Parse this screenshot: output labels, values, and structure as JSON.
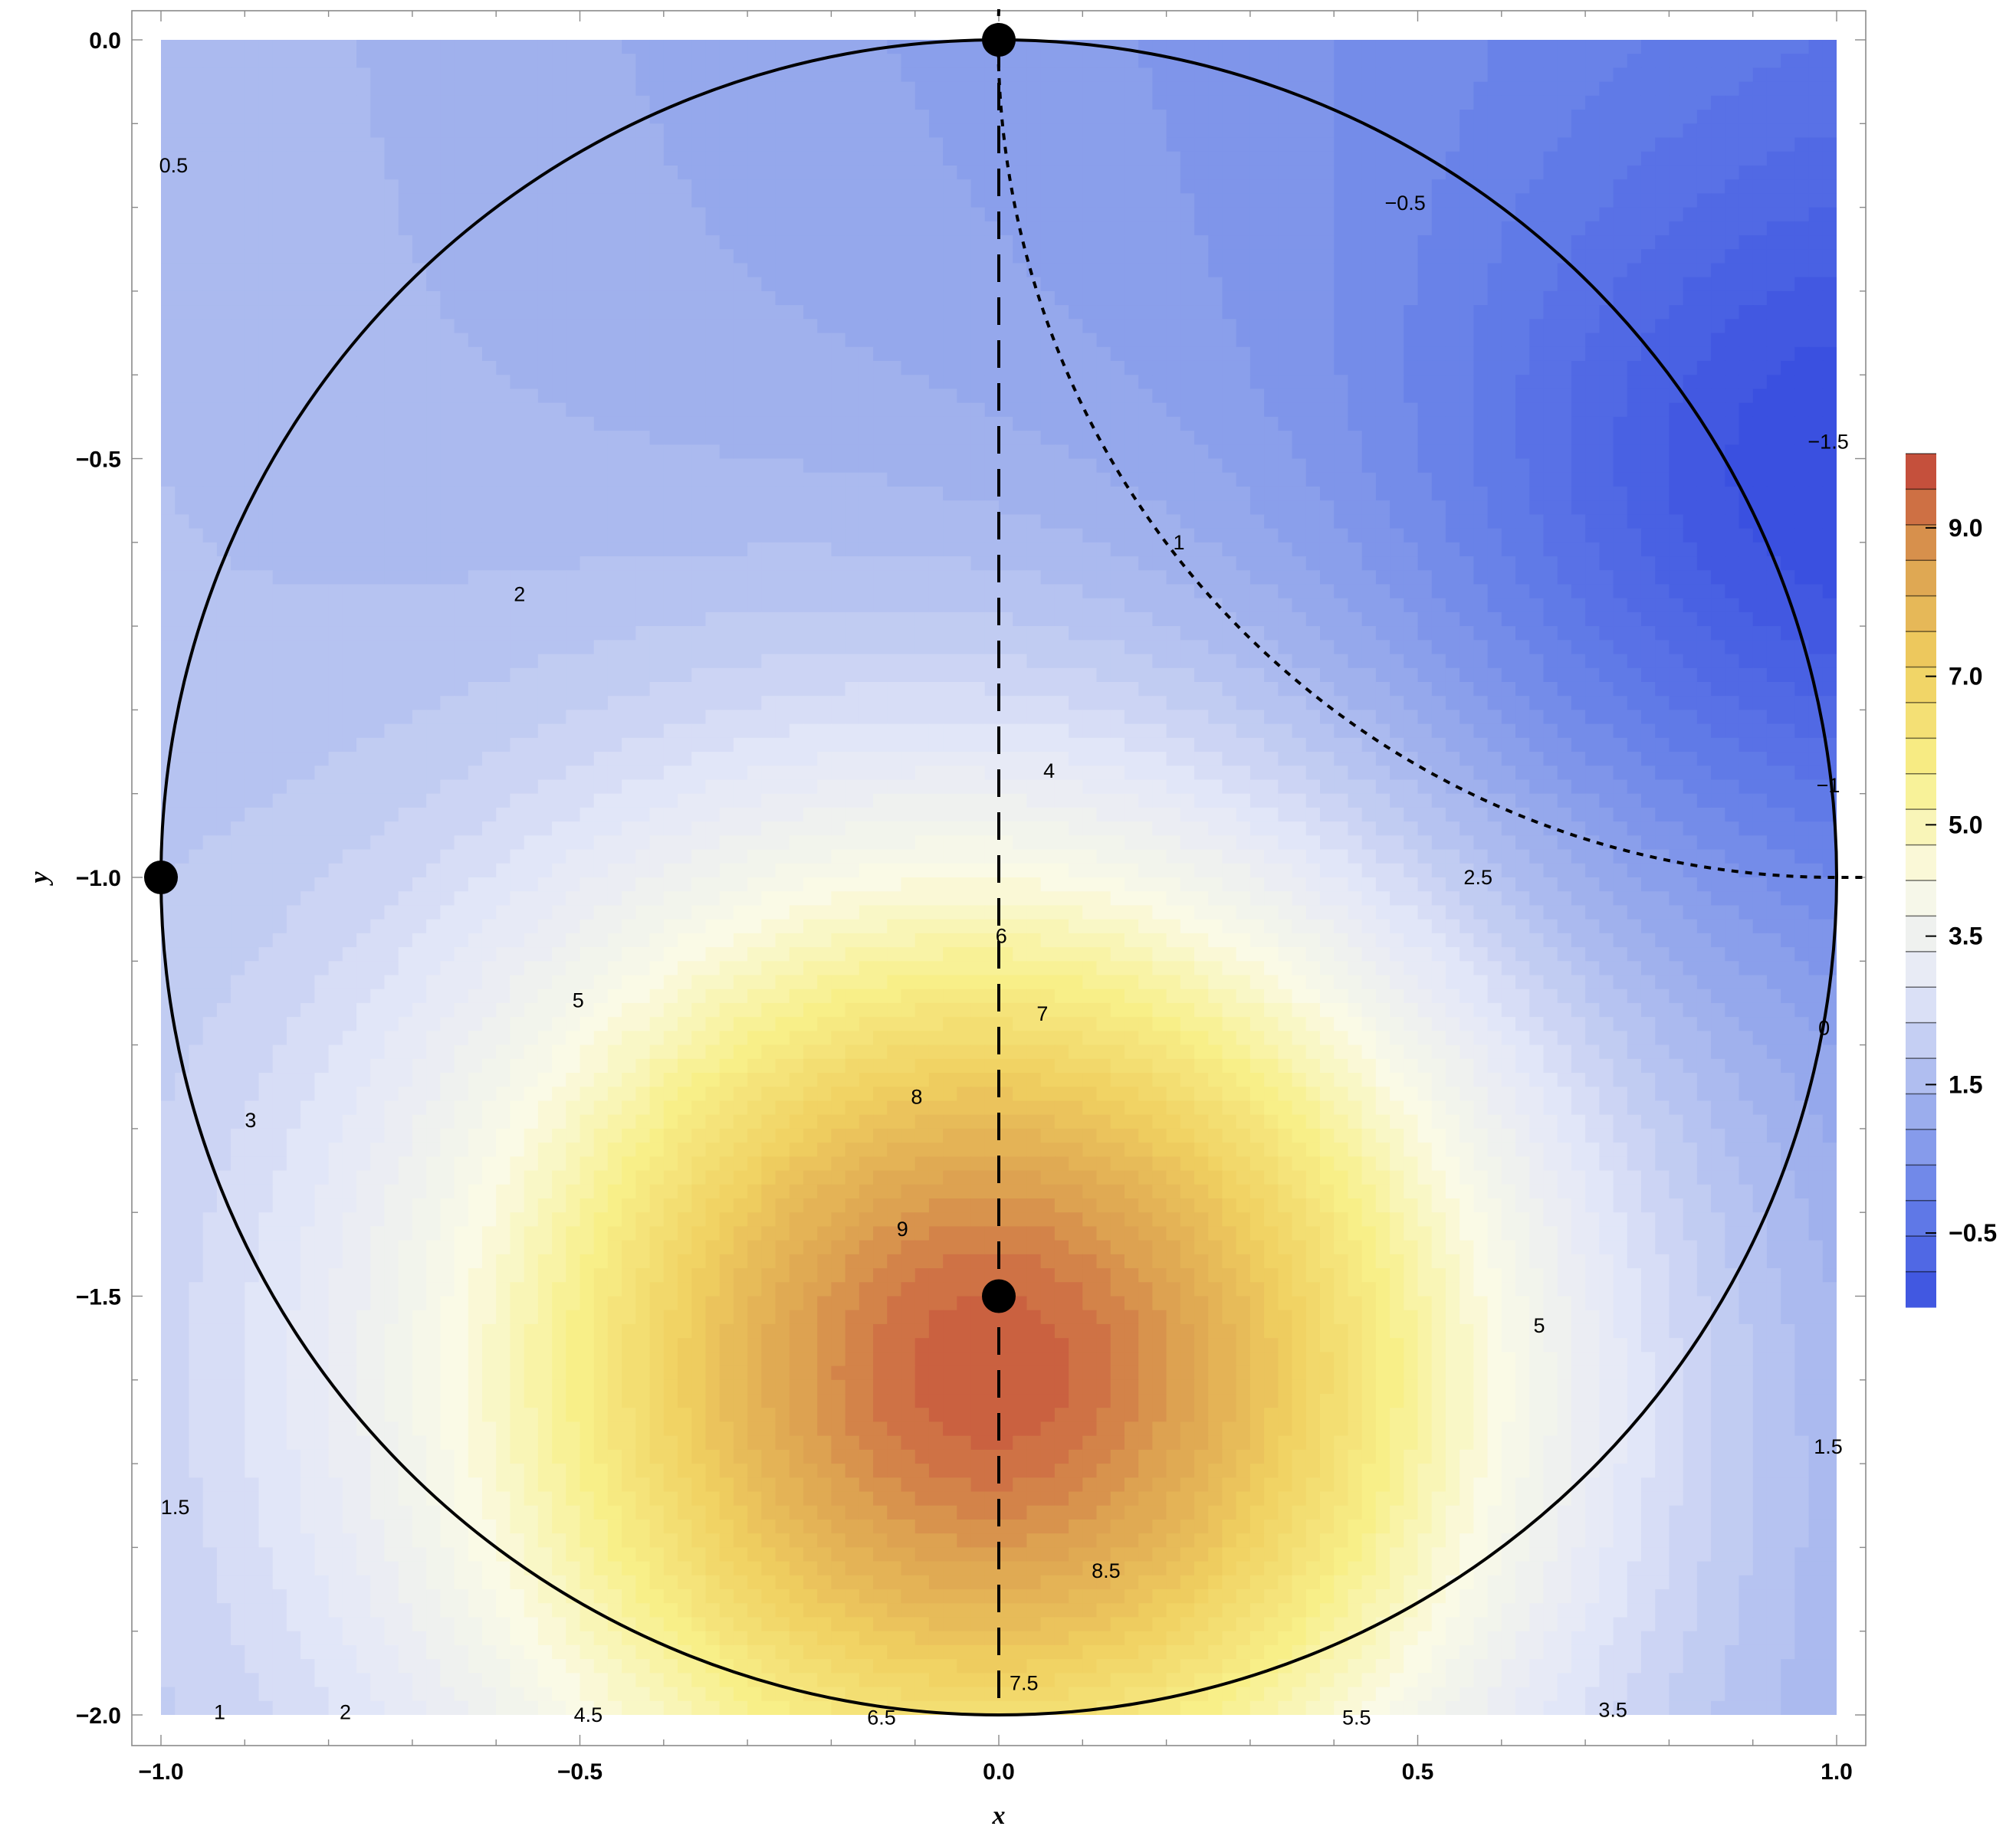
{
  "chart_data": {
    "type": "contour",
    "xlabel": "x",
    "ylabel": "y",
    "xlim": [
      -1.0,
      1.0
    ],
    "ylim": [
      -2.0,
      0.0
    ],
    "x_ticks": [
      "-1.0",
      "-0.5",
      "0.0",
      "0.5",
      "1.0"
    ],
    "y_ticks": [
      "0.0",
      "-0.5",
      "-1.0",
      "-1.5",
      "-2.0"
    ],
    "grid": false,
    "contour_levels": [
      -1.5,
      -1.25,
      -1.0,
      -0.75,
      -0.5,
      -0.25,
      0,
      0.25,
      0.5,
      0.75,
      1.0,
      1.25,
      1.5,
      1.75,
      2.0,
      2.25,
      2.5,
      2.75,
      3.0,
      3.25,
      3.5,
      3.75,
      4.0,
      4.25,
      4.5,
      4.75,
      5.0,
      5.25,
      5.5,
      5.75,
      6.0,
      6.25,
      6.5,
      6.75,
      7.0,
      7.25,
      7.5,
      7.75,
      8.0,
      8.25,
      8.5,
      8.75,
      9.0,
      9.25,
      9.5
    ],
    "color_scale": {
      "range": [
        -1.5,
        10.0
      ],
      "stops": [
        "#3a50e0",
        "#6680e8",
        "#a6b6ee",
        "#e4e8f8",
        "#fafae6",
        "#f8f08a",
        "#f0d060",
        "#dca050",
        "#c04038"
      ],
      "ticks": [
        "9.0",
        "7.0",
        "5.0",
        "3.5",
        "1.5",
        "-0.5"
      ],
      "placement": "right"
    },
    "contour_labels": [
      {
        "text": "0.5",
        "x": -0.985,
        "y": -0.15
      },
      {
        "text": "-0.5",
        "x": 0.485,
        "y": -0.195
      },
      {
        "text": "-1.5",
        "x": 0.99,
        "y": -0.48
      },
      {
        "text": "1",
        "x": 0.215,
        "y": -0.6
      },
      {
        "text": "2",
        "x": -0.572,
        "y": -0.662
      },
      {
        "text": "4",
        "x": 0.06,
        "y": -0.873
      },
      {
        "text": "-1",
        "x": 0.99,
        "y": -0.89
      },
      {
        "text": "2.5",
        "x": 0.572,
        "y": -1.0
      },
      {
        "text": "6",
        "x": 0.003,
        "y": -1.07
      },
      {
        "text": "5",
        "x": -0.502,
        "y": -1.147
      },
      {
        "text": "7",
        "x": 0.052,
        "y": -1.163
      },
      {
        "text": "0",
        "x": 0.985,
        "y": -1.18
      },
      {
        "text": "8",
        "x": -0.098,
        "y": -1.262
      },
      {
        "text": "3",
        "x": -0.893,
        "y": -1.29
      },
      {
        "text": "9",
        "x": -0.115,
        "y": -1.42
      },
      {
        "text": "5",
        "x": 0.645,
        "y": -1.535
      },
      {
        "text": "1.5",
        "x": 0.99,
        "y": -1.68
      },
      {
        "text": "1.5",
        "x": -0.983,
        "y": -1.752
      },
      {
        "text": "8.5",
        "x": 0.128,
        "y": -1.828
      },
      {
        "text": "7.5",
        "x": 0.03,
        "y": -1.962
      },
      {
        "text": "3.5",
        "x": 0.733,
        "y": -1.994
      },
      {
        "text": "1",
        "x": -0.93,
        "y": -1.997
      },
      {
        "text": "2",
        "x": -0.78,
        "y": -1.997
      },
      {
        "text": "4.5",
        "x": -0.49,
        "y": -2.0
      },
      {
        "text": "6.5",
        "x": -0.14,
        "y": -2.003
      },
      {
        "text": "5.5",
        "x": 0.427,
        "y": -2.003
      }
    ],
    "points": [
      {
        "x": 0.0,
        "y": 0.0
      },
      {
        "x": -1.0,
        "y": -1.0
      },
      {
        "x": 0.0,
        "y": -1.5
      }
    ],
    "overlays": {
      "circle": {
        "center": [
          0.0,
          -1.0
        ],
        "radius": 1.0,
        "style": "solid"
      },
      "vertical_line": {
        "x": 0.0,
        "y_range": [
          0.0,
          -2.0
        ],
        "style": "dashed"
      },
      "quarter_arc": {
        "center": [
          1.0,
          0.0
        ],
        "radius": 1.0,
        "style": "dotted"
      }
    }
  }
}
